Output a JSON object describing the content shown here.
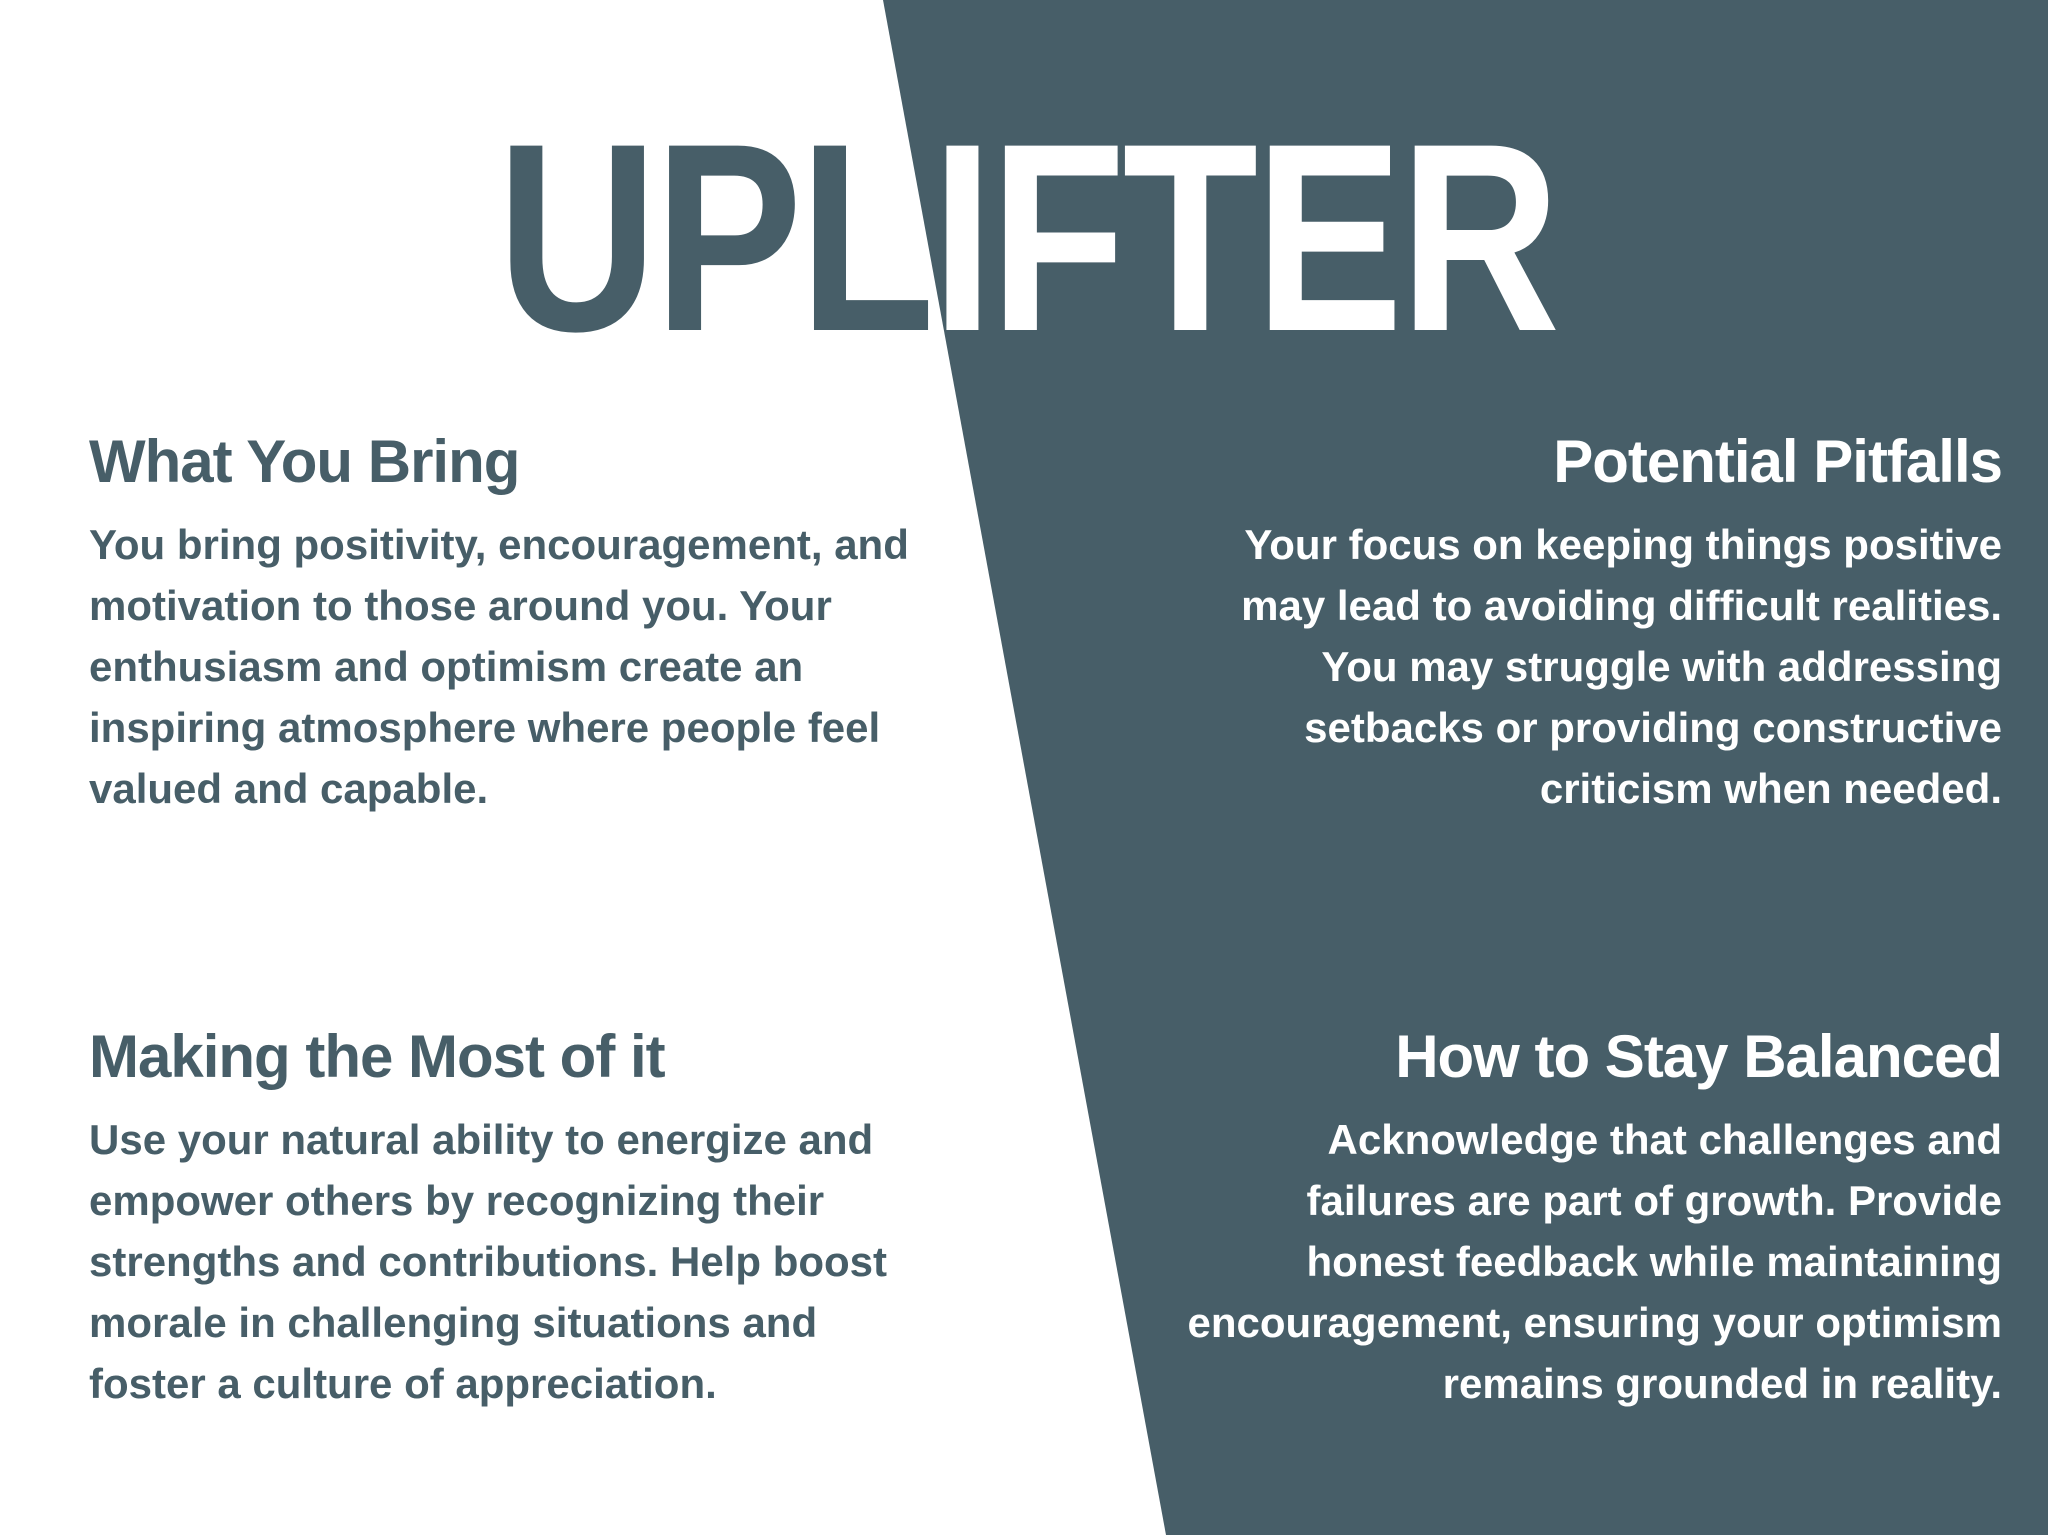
{
  "colors": {
    "background": "#ffffff",
    "accent": "#475e68",
    "inverse_text": "#ffffff"
  },
  "title": "UPLIFTER",
  "sections": {
    "what_you_bring": {
      "heading": "What You Bring",
      "body": "You bring positivity, encouragement, and\nmotivation to those around you. Your\nenthusiasm and optimism create an\ninspiring atmosphere where people feel\nvalued and capable."
    },
    "potential_pitfalls": {
      "heading": "Potential Pitfalls",
      "body": "Your focus on keeping things positive\nmay lead to avoiding difficult realities.\nYou may struggle with addressing\nsetbacks or providing constructive\ncriticism when needed."
    },
    "making_the_most": {
      "heading": "Making the Most of it",
      "body": "Use your natural ability to energize and\nempower others by recognizing their\nstrengths and contributions. Help boost\nmorale in challenging situations and\nfoster a culture of appreciation."
    },
    "stay_balanced": {
      "heading": "How to Stay Balanced",
      "body": "Acknowledge that challenges and\nfailures are part of growth. Provide\nhonest feedback while maintaining\nencouragement, ensuring your optimism\nremains grounded in reality."
    }
  }
}
